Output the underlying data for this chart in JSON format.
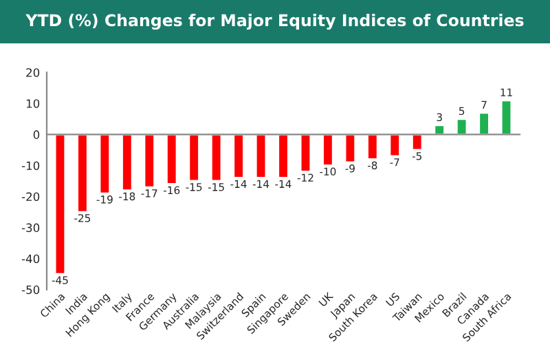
{
  "chart_data": {
    "type": "bar",
    "title": "YTD (%) Changes for Major Equity Indices of Countries",
    "categories": [
      "China",
      "India",
      "Hong Kong",
      "Italy",
      "France",
      "Germany",
      "Australia",
      "Malaysia",
      "Switzerland",
      "Spain",
      "Singapore",
      "Sweden",
      "UK",
      "Japan",
      "South Korea",
      "US",
      "Taiwan",
      "Mexico",
      "Brazil",
      "Canada",
      "South Africa"
    ],
    "values": [
      -45,
      -25,
      -19,
      -18,
      -17,
      -16,
      -15,
      -15,
      -14,
      -14,
      -14,
      -12,
      -10,
      -9,
      -8,
      -7,
      -5,
      3,
      5,
      7,
      11
    ],
    "colors": [
      "#ff0000",
      "#ff0000",
      "#ff0000",
      "#ff0000",
      "#ff0000",
      "#ff0000",
      "#ff0000",
      "#ff0000",
      "#ff0000",
      "#ff0000",
      "#ff0000",
      "#ff0000",
      "#ff0000",
      "#ff0000",
      "#ff0000",
      "#ff0000",
      "#ff0000",
      "#1fb04f",
      "#1fb04f",
      "#1fb04f",
      "#1fb04f"
    ],
    "ylim": [
      -50,
      20
    ],
    "yticks": [
      -50,
      -40,
      -30,
      -20,
      -10,
      0,
      10,
      20
    ],
    "data_labels": true
  }
}
